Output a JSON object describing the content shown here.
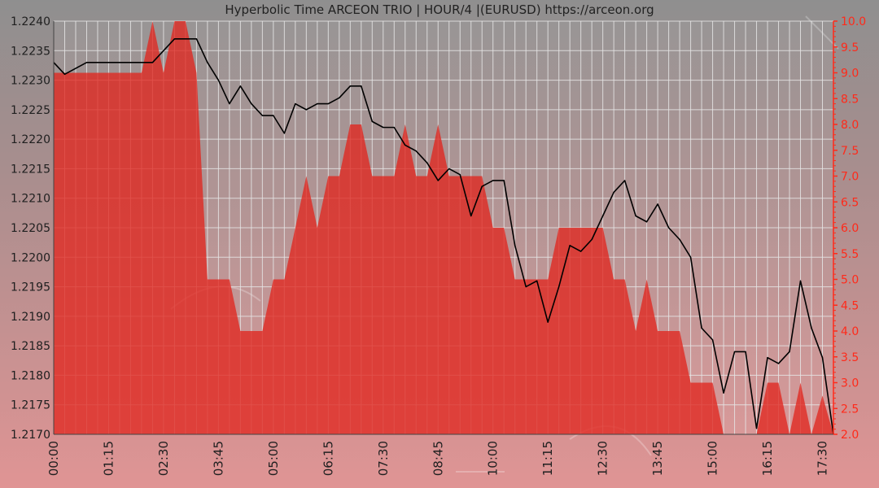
{
  "chart_data": {
    "type": "line",
    "title": "Hyperbolic Time ARCEON TRIO | HOUR/4 |(EURUSD) https://arceon.org",
    "x_tick_labels": [
      "00:00",
      "01:15",
      "02:30",
      "03:45",
      "05:00",
      "06:15",
      "07:30",
      "08:45",
      "10:00",
      "11:15",
      "12:30",
      "13:45",
      "15:00",
      "16:15",
      "17:30"
    ],
    "y_left": {
      "ylim": [
        1.217,
        1.224
      ],
      "tick_labels": [
        "1.2240",
        "1.2235",
        "1.2230",
        "1.2225",
        "1.2220",
        "1.2215",
        "1.2210",
        "1.2205",
        "1.2200",
        "1.2195",
        "1.2190",
        "1.2185",
        "1.2180",
        "1.2175",
        "1.2170"
      ]
    },
    "y_right": {
      "ylim": [
        2.0,
        10.0
      ],
      "tick_labels": [
        "10.0",
        "9.5",
        "9.0",
        "8.5",
        "8.0",
        "7.5",
        "7.0",
        "6.5",
        "6.0",
        "5.5",
        "5.0",
        "4.5",
        "4.0",
        "3.5",
        "3.0",
        "2.5",
        "2.0"
      ]
    },
    "x_step_minutes": 15,
    "grid": true,
    "colors": {
      "price_line": "#000000",
      "indicator_fill": "#e0261f",
      "right_axis": "#ff2a1a",
      "grid": "#e6e6e6",
      "text": "#202020"
    },
    "series": [
      {
        "axis": "left",
        "style": "line",
        "values": [
          1.2233,
          1.2231,
          1.2232,
          1.2233,
          1.2233,
          1.2233,
          1.2233,
          1.2233,
          1.2233,
          1.2233,
          1.2235,
          1.2237,
          1.2237,
          1.2237,
          1.2233,
          1.223,
          1.2226,
          1.2229,
          1.2226,
          1.2224,
          1.2224,
          1.2221,
          1.2226,
          1.2225,
          1.2226,
          1.2226,
          1.2227,
          1.2229,
          1.2229,
          1.2223,
          1.2222,
          1.2222,
          1.2219,
          1.2218,
          1.2216,
          1.2213,
          1.2215,
          1.2214,
          1.2207,
          1.2212,
          1.2213,
          1.2213,
          1.2202,
          1.2195,
          1.2196,
          1.2189,
          1.2195,
          1.2202,
          1.2201,
          1.2203,
          1.2207,
          1.2211,
          1.2213,
          1.2207,
          1.2206,
          1.2209,
          1.2205,
          1.2203,
          1.22,
          1.2188,
          1.2186,
          1.2177,
          1.2184,
          1.2184,
          1.2171,
          1.2183,
          1.2182,
          1.2184,
          1.2196,
          1.2188,
          1.2183,
          1.217
        ]
      },
      {
        "axis": "right",
        "style": "area",
        "values": [
          9.0,
          9.0,
          9.0,
          9.0,
          9.0,
          9.0,
          9.0,
          9.0,
          9.0,
          10.0,
          9.0,
          10.0,
          10.0,
          9.0,
          5.0,
          5.0,
          5.0,
          4.0,
          4.0,
          4.0,
          5.0,
          5.0,
          6.0,
          7.0,
          6.0,
          7.0,
          7.0,
          8.0,
          8.0,
          7.0,
          7.0,
          7.0,
          8.0,
          7.0,
          7.0,
          8.0,
          7.0,
          7.0,
          7.0,
          7.0,
          6.0,
          6.0,
          5.0,
          5.0,
          5.0,
          5.0,
          6.0,
          6.0,
          6.0,
          6.0,
          6.0,
          5.0,
          5.0,
          4.0,
          5.0,
          4.0,
          4.0,
          4.0,
          3.0,
          3.0,
          3.0,
          2.0,
          2.0,
          2.0,
          2.0,
          3.0,
          3.0,
          2.0,
          3.0,
          2.0,
          2.75,
          2.0
        ]
      }
    ]
  }
}
